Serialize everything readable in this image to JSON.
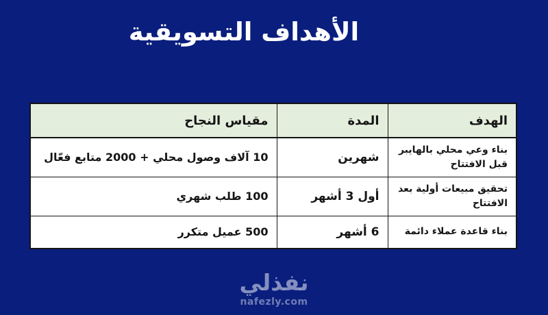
{
  "page": {
    "title": "الأهداف التسويقية"
  },
  "colors": {
    "background": "#0a1e7e",
    "title": "#ffffff",
    "header_bg": "#e3eedd",
    "table_border": "#141414",
    "cell_text": "#151515",
    "logo": "rgba(255,255,255,0.5)",
    "logo_dim": "rgba(255,255,255,0.42)"
  },
  "table": {
    "columns": [
      "الهدف",
      "المدة",
      "مقياس النجاح"
    ],
    "rows": [
      {
        "goal": "بناء وعي محلي بالهايبر\nقبل الافتتاح",
        "duration": "شهرين",
        "metric": "10 آلاف وصول محلي + 2000 متابع فعّال"
      },
      {
        "goal": "تحقيق مبيعات أولية بعد\nالافتتاح",
        "duration": "أول 3 أشهر",
        "metric": "100 طلب شهري"
      },
      {
        "goal": "بناء قاعدة عملاء دائمة",
        "duration": "6 أشهر",
        "metric": "500 عميل متكرر"
      }
    ]
  },
  "footer": {
    "logo_arabic": "نفذلي",
    "logo_domain": "nafezly.com"
  }
}
